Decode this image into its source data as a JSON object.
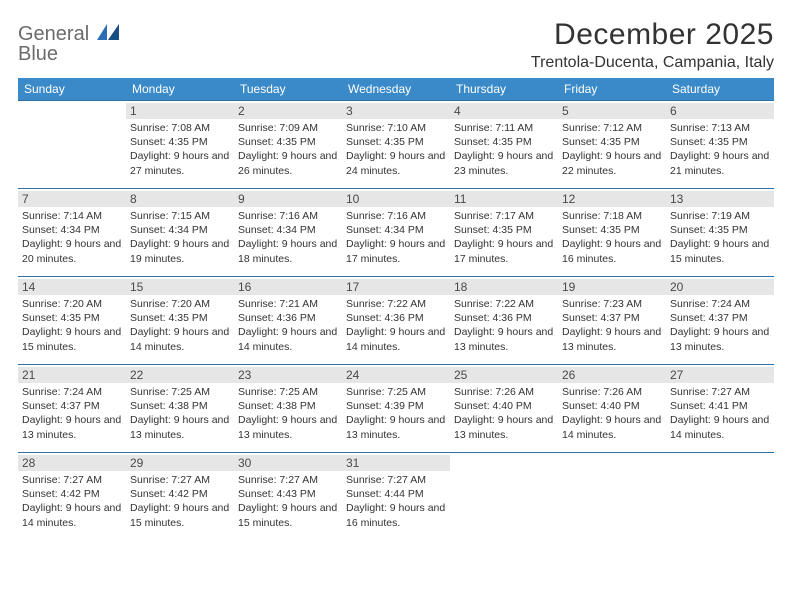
{
  "brand": {
    "word1": "General",
    "word2": "Blue"
  },
  "title": "December 2025",
  "location": "Trentola-Ducenta, Campania, Italy",
  "colors": {
    "header_bg": "#3a8ac9",
    "header_text": "#ffffff",
    "daynum_bg": "#e6e6e6",
    "row_border": "#2f6fa3",
    "text": "#333333",
    "logo_gray": "#6b6b6b",
    "logo_blue": "#2a6fb5"
  },
  "typography": {
    "title_fontsize": 30,
    "location_fontsize": 16,
    "dow_fontsize": 12,
    "daynum_fontsize": 12,
    "cell_fontsize": 10.5
  },
  "dow": [
    "Sunday",
    "Monday",
    "Tuesday",
    "Wednesday",
    "Thursday",
    "Friday",
    "Saturday"
  ],
  "weeks": [
    [
      null,
      {
        "n": "1",
        "sunrise": "7:08 AM",
        "sunset": "4:35 PM",
        "daylight": "9 hours and 27 minutes."
      },
      {
        "n": "2",
        "sunrise": "7:09 AM",
        "sunset": "4:35 PM",
        "daylight": "9 hours and 26 minutes."
      },
      {
        "n": "3",
        "sunrise": "7:10 AM",
        "sunset": "4:35 PM",
        "daylight": "9 hours and 24 minutes."
      },
      {
        "n": "4",
        "sunrise": "7:11 AM",
        "sunset": "4:35 PM",
        "daylight": "9 hours and 23 minutes."
      },
      {
        "n": "5",
        "sunrise": "7:12 AM",
        "sunset": "4:35 PM",
        "daylight": "9 hours and 22 minutes."
      },
      {
        "n": "6",
        "sunrise": "7:13 AM",
        "sunset": "4:35 PM",
        "daylight": "9 hours and 21 minutes."
      }
    ],
    [
      {
        "n": "7",
        "sunrise": "7:14 AM",
        "sunset": "4:34 PM",
        "daylight": "9 hours and 20 minutes."
      },
      {
        "n": "8",
        "sunrise": "7:15 AM",
        "sunset": "4:34 PM",
        "daylight": "9 hours and 19 minutes."
      },
      {
        "n": "9",
        "sunrise": "7:16 AM",
        "sunset": "4:34 PM",
        "daylight": "9 hours and 18 minutes."
      },
      {
        "n": "10",
        "sunrise": "7:16 AM",
        "sunset": "4:34 PM",
        "daylight": "9 hours and 17 minutes."
      },
      {
        "n": "11",
        "sunrise": "7:17 AM",
        "sunset": "4:35 PM",
        "daylight": "9 hours and 17 minutes."
      },
      {
        "n": "12",
        "sunrise": "7:18 AM",
        "sunset": "4:35 PM",
        "daylight": "9 hours and 16 minutes."
      },
      {
        "n": "13",
        "sunrise": "7:19 AM",
        "sunset": "4:35 PM",
        "daylight": "9 hours and 15 minutes."
      }
    ],
    [
      {
        "n": "14",
        "sunrise": "7:20 AM",
        "sunset": "4:35 PM",
        "daylight": "9 hours and 15 minutes."
      },
      {
        "n": "15",
        "sunrise": "7:20 AM",
        "sunset": "4:35 PM",
        "daylight": "9 hours and 14 minutes."
      },
      {
        "n": "16",
        "sunrise": "7:21 AM",
        "sunset": "4:36 PM",
        "daylight": "9 hours and 14 minutes."
      },
      {
        "n": "17",
        "sunrise": "7:22 AM",
        "sunset": "4:36 PM",
        "daylight": "9 hours and 14 minutes."
      },
      {
        "n": "18",
        "sunrise": "7:22 AM",
        "sunset": "4:36 PM",
        "daylight": "9 hours and 13 minutes."
      },
      {
        "n": "19",
        "sunrise": "7:23 AM",
        "sunset": "4:37 PM",
        "daylight": "9 hours and 13 minutes."
      },
      {
        "n": "20",
        "sunrise": "7:24 AM",
        "sunset": "4:37 PM",
        "daylight": "9 hours and 13 minutes."
      }
    ],
    [
      {
        "n": "21",
        "sunrise": "7:24 AM",
        "sunset": "4:37 PM",
        "daylight": "9 hours and 13 minutes."
      },
      {
        "n": "22",
        "sunrise": "7:25 AM",
        "sunset": "4:38 PM",
        "daylight": "9 hours and 13 minutes."
      },
      {
        "n": "23",
        "sunrise": "7:25 AM",
        "sunset": "4:38 PM",
        "daylight": "9 hours and 13 minutes."
      },
      {
        "n": "24",
        "sunrise": "7:25 AM",
        "sunset": "4:39 PM",
        "daylight": "9 hours and 13 minutes."
      },
      {
        "n": "25",
        "sunrise": "7:26 AM",
        "sunset": "4:40 PM",
        "daylight": "9 hours and 13 minutes."
      },
      {
        "n": "26",
        "sunrise": "7:26 AM",
        "sunset": "4:40 PM",
        "daylight": "9 hours and 14 minutes."
      },
      {
        "n": "27",
        "sunrise": "7:27 AM",
        "sunset": "4:41 PM",
        "daylight": "9 hours and 14 minutes."
      }
    ],
    [
      {
        "n": "28",
        "sunrise": "7:27 AM",
        "sunset": "4:42 PM",
        "daylight": "9 hours and 14 minutes."
      },
      {
        "n": "29",
        "sunrise": "7:27 AM",
        "sunset": "4:42 PM",
        "daylight": "9 hours and 15 minutes."
      },
      {
        "n": "30",
        "sunrise": "7:27 AM",
        "sunset": "4:43 PM",
        "daylight": "9 hours and 15 minutes."
      },
      {
        "n": "31",
        "sunrise": "7:27 AM",
        "sunset": "4:44 PM",
        "daylight": "9 hours and 16 minutes."
      },
      null,
      null,
      null
    ]
  ],
  "labels": {
    "sunrise": "Sunrise:",
    "sunset": "Sunset:",
    "daylight": "Daylight:"
  }
}
